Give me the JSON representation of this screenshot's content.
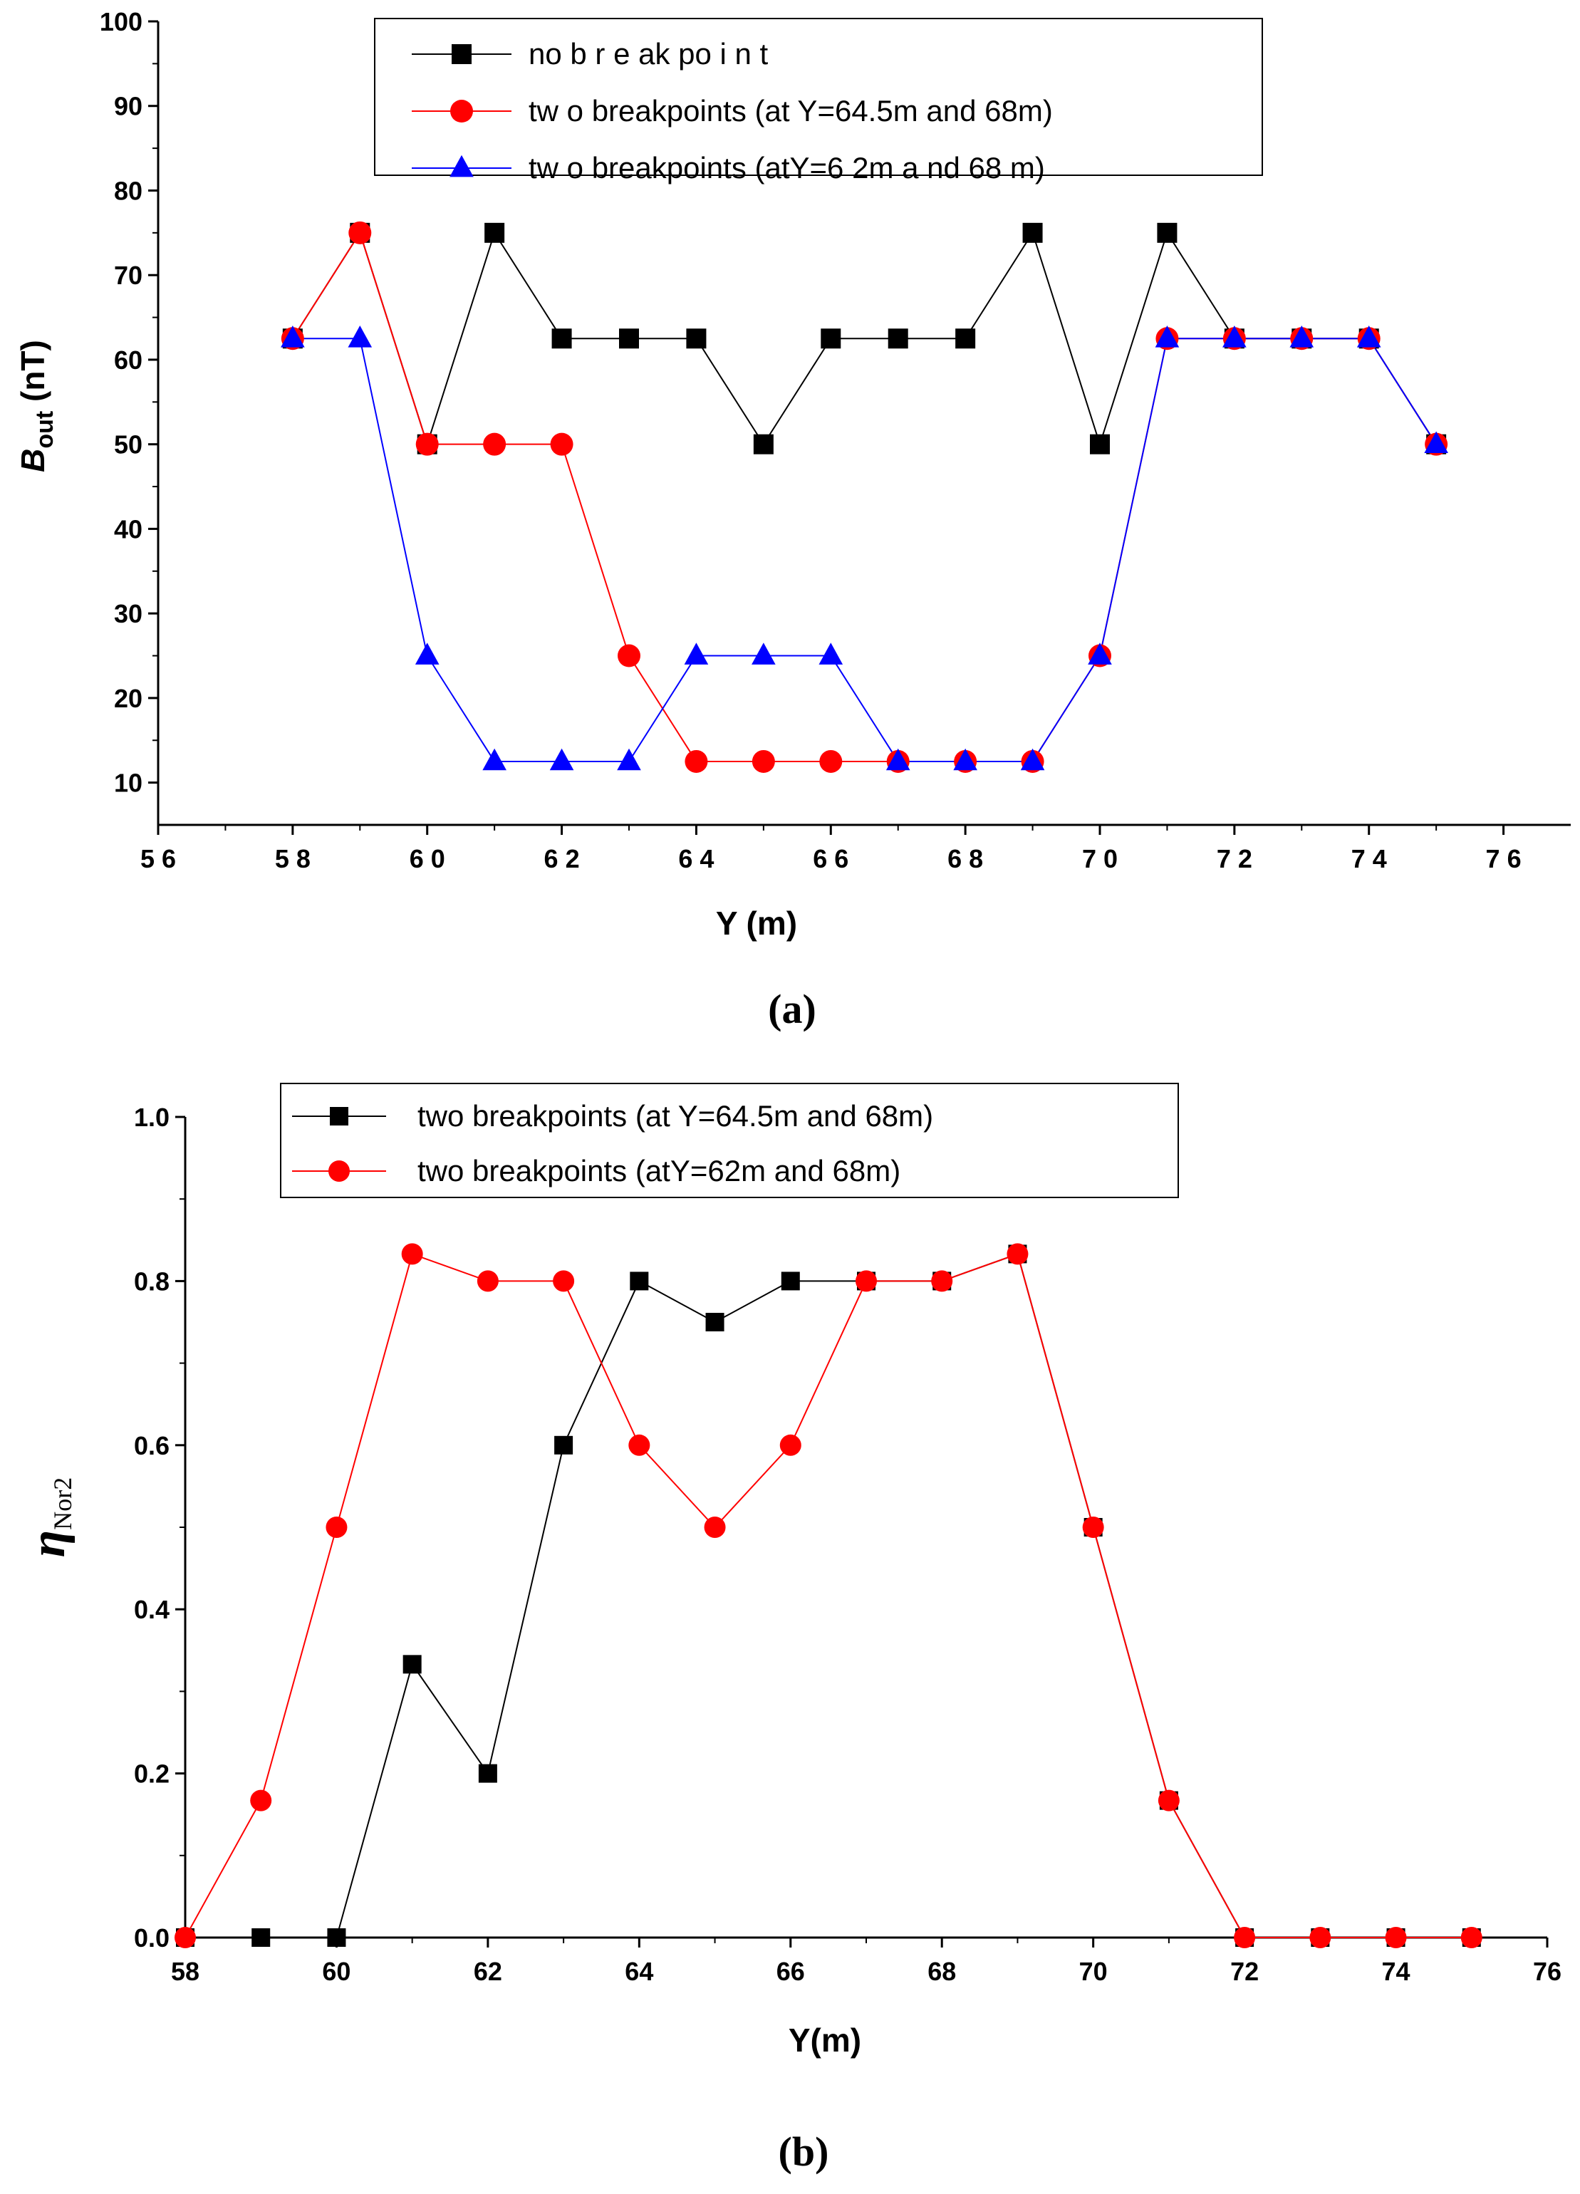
{
  "chart_data": [
    {
      "type": "line",
      "panel_label": "(a)",
      "xlabel": "Y (m)",
      "ylabel_main": "B",
      "ylabel_sub": "out",
      "ylabel_unit": " (nT)",
      "xlim": [
        56,
        77
      ],
      "ylim": [
        5,
        100
      ],
      "xticks": [
        56,
        58,
        60,
        62,
        64,
        66,
        68,
        70,
        72,
        74,
        76
      ],
      "xtick_labels": [
        "5 6",
        "5 8",
        "6 0",
        "6 2",
        "6 4",
        "6 6",
        "6 8",
        "7 0",
        "7 2",
        "7 4",
        "7 6"
      ],
      "yticks": [
        10,
        20,
        30,
        40,
        50,
        60,
        70,
        80,
        90,
        100
      ],
      "ytick_labels": [
        "10",
        "20",
        "30",
        "40",
        "50",
        "60",
        "70",
        "80",
        "90",
        "100"
      ],
      "legend_position": "top-center",
      "series": [
        {
          "name": "no breakpoint",
          "label": "no b r e ak po i n t",
          "color": "#000000",
          "marker": "square",
          "x": [
            58,
            59,
            60,
            61,
            62,
            63,
            64,
            65,
            66,
            67,
            68,
            69,
            70,
            71,
            72,
            73,
            74,
            75
          ],
          "y": [
            62.5,
            75,
            50,
            75,
            62.5,
            62.5,
            62.5,
            50,
            62.5,
            62.5,
            62.5,
            75,
            50,
            75,
            62.5,
            62.5,
            62.5,
            50
          ]
        },
        {
          "name": "two breakpoints (at Y=64.5m and 68m)",
          "label": "tw o breakpoints (at Y=64.5m and 68m)",
          "color": "#ff0000",
          "marker": "circle",
          "x": [
            58,
            59,
            60,
            61,
            62,
            63,
            64,
            65,
            66,
            67,
            68,
            69,
            70,
            71,
            72,
            73,
            74,
            75
          ],
          "y": [
            62.5,
            75,
            50,
            50,
            50,
            25,
            12.5,
            12.5,
            12.5,
            12.5,
            12.5,
            12.5,
            25,
            62.5,
            62.5,
            62.5,
            62.5,
            50
          ]
        },
        {
          "name": "two breakpoints (atY=62m and 68m)",
          "label": "tw o breakpoints (atY=6 2m a nd 68 m)",
          "color": "#0000ff",
          "marker": "triangle",
          "x": [
            58,
            59,
            60,
            61,
            62,
            63,
            64,
            65,
            66,
            67,
            68,
            69,
            70,
            71,
            72,
            73,
            74,
            75
          ],
          "y": [
            62.5,
            62.5,
            25,
            12.5,
            12.5,
            12.5,
            25,
            25,
            25,
            12.5,
            12.5,
            12.5,
            25,
            62.5,
            62.5,
            62.5,
            62.5,
            50
          ]
        }
      ]
    },
    {
      "type": "line",
      "panel_label": "(b)",
      "xlabel": "Y(m)",
      "ylabel_main": "η",
      "ylabel_sub": "Nor2",
      "xlim": [
        58,
        76
      ],
      "ylim": [
        0,
        1.0
      ],
      "xticks": [
        58,
        60,
        62,
        64,
        66,
        68,
        70,
        72,
        74,
        76
      ],
      "xtick_labels": [
        "58",
        "60",
        "62",
        "64",
        "66",
        "68",
        "70",
        "72",
        "74",
        "76"
      ],
      "yticks": [
        0,
        0.2,
        0.4,
        0.6,
        0.8,
        1.0
      ],
      "ytick_labels": [
        "0.0",
        "0.2",
        "0.4",
        "0.6",
        "0.8",
        "1.0"
      ],
      "legend_position": "top-center",
      "series": [
        {
          "name": "two breakpoints (at Y=64.5m and 68m)",
          "label": "two breakpoints (at Y=64.5m and 68m)",
          "color": "#000000",
          "marker": "square",
          "x": [
            58,
            59,
            60,
            61,
            62,
            63,
            64,
            65,
            66,
            67,
            68,
            69,
            70,
            71,
            72,
            73,
            74,
            75
          ],
          "y": [
            0,
            0,
            0,
            0.333,
            0.2,
            0.6,
            0.8,
            0.75,
            0.8,
            0.8,
            0.8,
            0.833,
            0.5,
            0.167,
            0,
            0,
            0,
            0
          ]
        },
        {
          "name": "two breakpoints (atY=62m and 68m)",
          "label": "two breakpoints (atY=62m and 68m)",
          "color": "#ff0000",
          "marker": "circle",
          "x": [
            58,
            59,
            60,
            61,
            62,
            63,
            64,
            65,
            66,
            67,
            68,
            69,
            70,
            71,
            72,
            73,
            74,
            75
          ],
          "y": [
            0,
            0.167,
            0.5,
            0.833,
            0.8,
            0.8,
            0.6,
            0.5,
            0.6,
            0.8,
            0.8,
            0.833,
            0.5,
            0.167,
            0,
            0,
            0,
            0
          ]
        }
      ]
    }
  ]
}
